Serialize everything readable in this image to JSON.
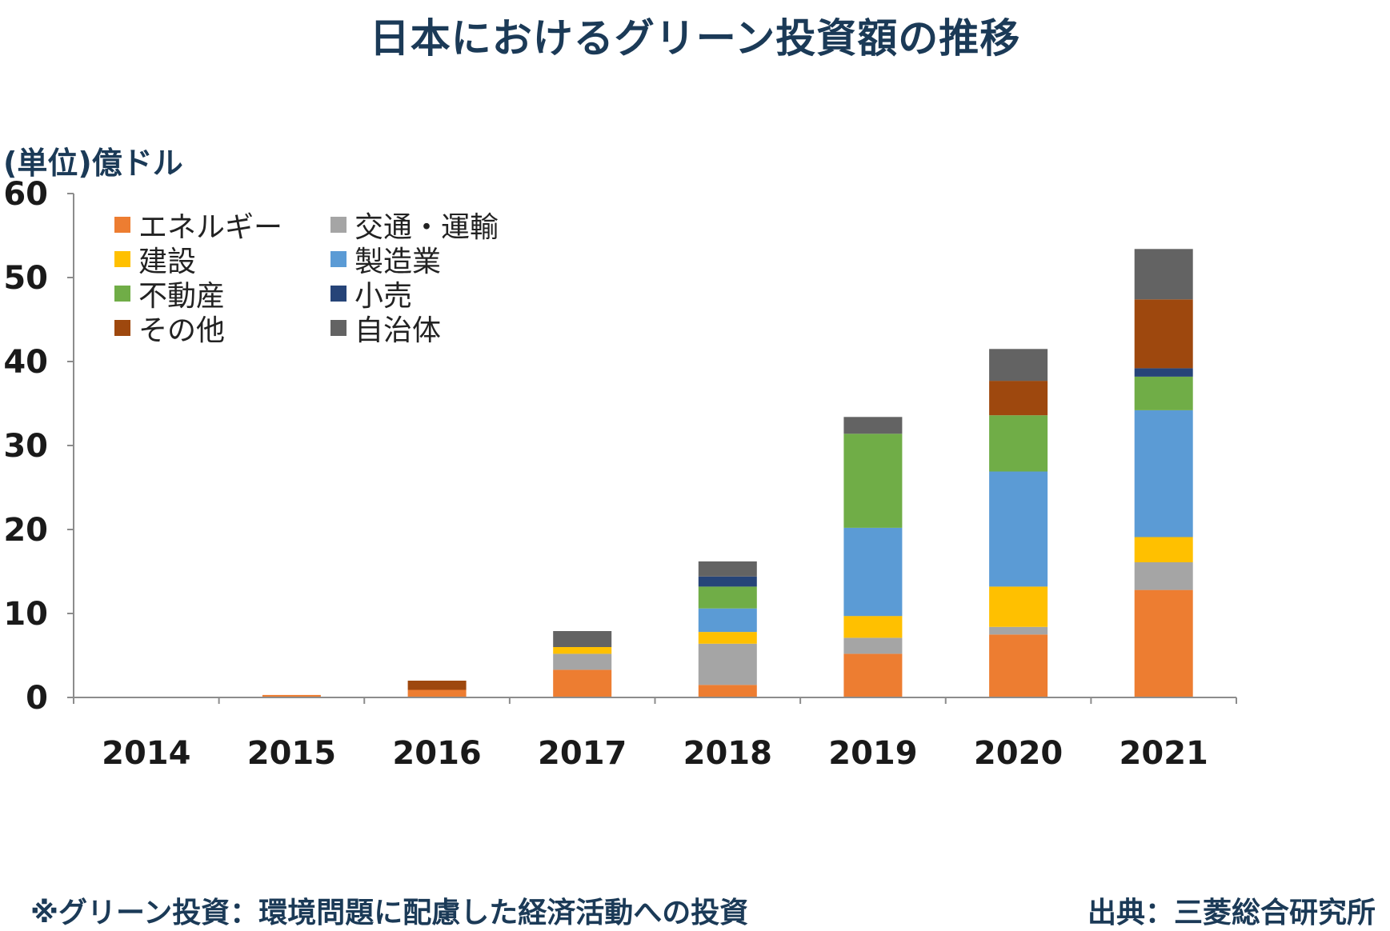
{
  "title": "日本におけるグリーン投資額の推移",
  "footnote": "※グリーン投資：環境問題に配慮した経済活動への投資",
  "source": "出典：三菱総合研究所",
  "chart_data": {
    "type": "bar",
    "stacked": true,
    "title": "日本におけるグリーン投資額の推移",
    "ylabel": "(単位)億ドル",
    "xlabel": "",
    "ylim": [
      0,
      60
    ],
    "yticks": [
      0,
      10,
      20,
      30,
      40,
      50,
      60
    ],
    "grid": false,
    "legend_position": "top-left",
    "categories": [
      "2014",
      "2015",
      "2016",
      "2017",
      "2018",
      "2019",
      "2020",
      "2021"
    ],
    "series": [
      {
        "name": "エネルギー",
        "color": "#ED7D31",
        "values": [
          0,
          0.3,
          0.9,
          3.3,
          1.5,
          5.2,
          7.5,
          12.8
        ]
      },
      {
        "name": "交通・運輸",
        "color": "#A5A5A5",
        "values": [
          0,
          0,
          0,
          1.9,
          4.9,
          1.9,
          0.9,
          3.3
        ]
      },
      {
        "name": "建設",
        "color": "#FFC000",
        "values": [
          0,
          0,
          0,
          0.8,
          1.4,
          2.6,
          4.8,
          3.0
        ]
      },
      {
        "name": "製造業",
        "color": "#5B9BD5",
        "values": [
          0,
          0,
          0,
          0,
          2.8,
          10.5,
          13.7,
          15.1
        ]
      },
      {
        "name": "不動産",
        "color": "#70AD47",
        "values": [
          0,
          0,
          0,
          0,
          2.6,
          11.2,
          6.7,
          4.0
        ]
      },
      {
        "name": "小売",
        "color": "#264478",
        "values": [
          0,
          0,
          0,
          0,
          1.2,
          0,
          0,
          1.0
        ]
      },
      {
        "name": "その他",
        "color": "#9E480E",
        "values": [
          0,
          0,
          1.1,
          0,
          0,
          0,
          4.1,
          8.2
        ]
      },
      {
        "name": "自治体",
        "color": "#636363",
        "values": [
          0,
          0,
          0,
          1.9,
          1.8,
          2.0,
          3.8,
          6.0
        ]
      }
    ]
  }
}
